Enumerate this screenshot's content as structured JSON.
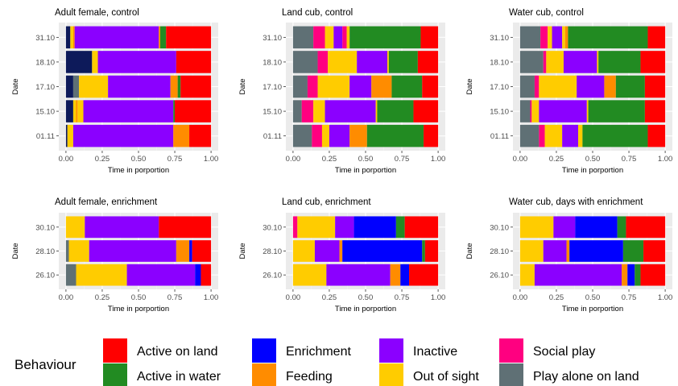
{
  "colors": {
    "Active on land": "#ff0000",
    "Enrichment": "#0000ff",
    "Inactive": "#8b00ff",
    "Social play": "#ff0080",
    "Active in water": "#228b22",
    "Feeding": "#ff8c00",
    "Out of sight": "#ffcc00",
    "Play alone on land": "#5f7075",
    "unlabeled_dark_navy": "#0d1a5a"
  },
  "legend": {
    "title": "Behaviour",
    "items": [
      "Active on land",
      "Active in water",
      "Enrichment",
      "Feeding",
      "Inactive",
      "Out of sight",
      "Social play",
      "Play alone on land"
    ]
  },
  "chart_data": [
    {
      "type": "bar",
      "orientation": "horizontal",
      "stacked": true,
      "title": "Adult female, control",
      "xlabel": "Time in porportion",
      "ylabel": "Date",
      "xlim": [
        0,
        1
      ],
      "xticks": [
        "0.00",
        "0.25",
        "0.50",
        "0.75",
        "1.00"
      ],
      "categories": [
        "31.10",
        "18.10",
        "17.10",
        "15.10",
        "01.11"
      ],
      "bars": [
        [
          [
            "unlabeled_dark_navy",
            0.03
          ],
          [
            "Out of sight",
            0.02
          ],
          [
            "Feeding",
            0.01
          ],
          [
            "Inactive",
            0.58
          ],
          [
            "Feeding",
            0.01
          ],
          [
            "Active in water",
            0.04
          ],
          [
            "Active on land",
            0.31
          ]
        ],
        [
          [
            "unlabeled_dark_navy",
            0.18
          ],
          [
            "Out of sight",
            0.04
          ],
          [
            "Inactive",
            0.54
          ],
          [
            "Active on land",
            0.24
          ]
        ],
        [
          [
            "unlabeled_dark_navy",
            0.05
          ],
          [
            "Play alone on land",
            0.04
          ],
          [
            "Out of sight",
            0.2
          ],
          [
            "Inactive",
            0.43
          ],
          [
            "Feeding",
            0.05
          ],
          [
            "Active in water",
            0.02
          ],
          [
            "Active on land",
            0.21
          ]
        ],
        [
          [
            "unlabeled_dark_navy",
            0.05
          ],
          [
            "Out of sight",
            0.02
          ],
          [
            "Feeding",
            0.01
          ],
          [
            "Out of sight",
            0.04
          ],
          [
            "Inactive",
            0.62
          ],
          [
            "Active in water",
            0.01
          ],
          [
            "Active on land",
            0.25
          ]
        ],
        [
          [
            "unlabeled_dark_navy",
            0.01
          ],
          [
            "Out of sight",
            0.04
          ],
          [
            "Inactive",
            0.69
          ],
          [
            "Feeding",
            0.11
          ],
          [
            "Active on land",
            0.15
          ]
        ]
      ]
    },
    {
      "type": "bar",
      "orientation": "horizontal",
      "stacked": true,
      "title": "Land cub, control",
      "xlabel": "Time in porportion",
      "ylabel": "Date",
      "xlim": [
        0,
        1
      ],
      "xticks": [
        "0.00",
        "0.25",
        "0.50",
        "0.75",
        "1.00"
      ],
      "categories": [
        "31.10",
        "18.10",
        "17.10",
        "15.10",
        "01.11"
      ],
      "bars": [
        [
          [
            "Play alone on land",
            0.14
          ],
          [
            "Social play",
            0.08
          ],
          [
            "Out of sight",
            0.06
          ],
          [
            "Inactive",
            0.06
          ],
          [
            "Social play",
            0.03
          ],
          [
            "Out of sight",
            0.02
          ],
          [
            "Active in water",
            0.49
          ],
          [
            "Active on land",
            0.12
          ]
        ],
        [
          [
            "Play alone on land",
            0.17
          ],
          [
            "Social play",
            0.07
          ],
          [
            "Out of sight",
            0.2
          ],
          [
            "Inactive",
            0.21
          ],
          [
            "Out of sight",
            0.01
          ],
          [
            "Active in water",
            0.2
          ],
          [
            "Active on land",
            0.14
          ]
        ],
        [
          [
            "Play alone on land",
            0.1
          ],
          [
            "Social play",
            0.07
          ],
          [
            "Out of sight",
            0.22
          ],
          [
            "Inactive",
            0.15
          ],
          [
            "Feeding",
            0.14
          ],
          [
            "Active in water",
            0.21
          ],
          [
            "Active on land",
            0.11
          ]
        ],
        [
          [
            "Play alone on land",
            0.06
          ],
          [
            "Social play",
            0.08
          ],
          [
            "Out of sight",
            0.08
          ],
          [
            "Inactive",
            0.35
          ],
          [
            "Out of sight",
            0.01
          ],
          [
            "Active in water",
            0.25
          ],
          [
            "Active on land",
            0.17
          ]
        ],
        [
          [
            "Play alone on land",
            0.13
          ],
          [
            "Social play",
            0.07
          ],
          [
            "Out of sight",
            0.05
          ],
          [
            "Inactive",
            0.14
          ],
          [
            "Feeding",
            0.12
          ],
          [
            "Active in water",
            0.39
          ],
          [
            "Active on land",
            0.1
          ]
        ]
      ]
    },
    {
      "type": "bar",
      "orientation": "horizontal",
      "stacked": true,
      "title": "Water cub, control",
      "xlabel": "Time in porportion",
      "ylabel": "Date",
      "xlim": [
        0,
        1
      ],
      "xticks": [
        "0.00",
        "0.25",
        "0.50",
        "0.75",
        "1.00"
      ],
      "categories": [
        "31.10",
        "18.10",
        "17.10",
        "15.10",
        "01.11"
      ],
      "bars": [
        [
          [
            "Play alone on land",
            0.14
          ],
          [
            "Social play",
            0.05
          ],
          [
            "Out of sight",
            0.03
          ],
          [
            "Inactive",
            0.07
          ],
          [
            "Out of sight",
            0.02
          ],
          [
            "Feeding",
            0.02
          ],
          [
            "Active in water",
            0.55
          ],
          [
            "Active on land",
            0.12
          ]
        ],
        [
          [
            "Play alone on land",
            0.16
          ],
          [
            "Social play",
            0.02
          ],
          [
            "Out of sight",
            0.12
          ],
          [
            "Inactive",
            0.23
          ],
          [
            "Out of sight",
            0.01
          ],
          [
            "Active in water",
            0.29
          ],
          [
            "Active on land",
            0.17
          ]
        ],
        [
          [
            "Play alone on land",
            0.1
          ],
          [
            "Social play",
            0.03
          ],
          [
            "Out of sight",
            0.26
          ],
          [
            "Inactive",
            0.19
          ],
          [
            "Feeding",
            0.08
          ],
          [
            "Active in water",
            0.2
          ],
          [
            "Active on land",
            0.14
          ]
        ],
        [
          [
            "Play alone on land",
            0.07
          ],
          [
            "Social play",
            0.01
          ],
          [
            "Out of sight",
            0.05
          ],
          [
            "Inactive",
            0.33
          ],
          [
            "Out of sight",
            0.01
          ],
          [
            "Active in water",
            0.39
          ],
          [
            "Active on land",
            0.14
          ]
        ],
        [
          [
            "Play alone on land",
            0.13
          ],
          [
            "Social play",
            0.04
          ],
          [
            "Out of sight",
            0.12
          ],
          [
            "Inactive",
            0.11
          ],
          [
            "Out of sight",
            0.03
          ],
          [
            "Active in water",
            0.45
          ],
          [
            "Active on land",
            0.12
          ]
        ]
      ]
    },
    {
      "type": "bar",
      "orientation": "horizontal",
      "stacked": true,
      "title": "Adult female, enrichment",
      "xlabel": "Time in porportion",
      "ylabel": "Date",
      "xlim": [
        0,
        1
      ],
      "xticks": [
        "0.00",
        "0.25",
        "0.50",
        "0.75",
        "1.00"
      ],
      "categories": [
        "30.10",
        "28.10",
        "26.10"
      ],
      "bars": [
        [
          [
            "Out of sight",
            0.13
          ],
          [
            "Inactive",
            0.51
          ],
          [
            "Active on land",
            0.36
          ]
        ],
        [
          [
            "Play alone on land",
            0.02
          ],
          [
            "Out of sight",
            0.14
          ],
          [
            "Inactive",
            0.6
          ],
          [
            "Feeding",
            0.09
          ],
          [
            "Enrichment",
            0.02
          ],
          [
            "Active on land",
            0.13
          ]
        ],
        [
          [
            "Play alone on land",
            0.07
          ],
          [
            "Out of sight",
            0.35
          ],
          [
            "Inactive",
            0.47
          ],
          [
            "Enrichment",
            0.04
          ],
          [
            "Active on land",
            0.07
          ]
        ]
      ]
    },
    {
      "type": "bar",
      "orientation": "horizontal",
      "stacked": true,
      "title": "Land cub, enrichment",
      "xlabel": "Time in porportion",
      "ylabel": "Date",
      "xlim": [
        0,
        1
      ],
      "xticks": [
        "0.00",
        "0.25",
        "0.50",
        "0.75",
        "1.00"
      ],
      "categories": [
        "30.10",
        "28.10",
        "26.10"
      ],
      "bars": [
        [
          [
            "Social play",
            0.03
          ],
          [
            "Out of sight",
            0.26
          ],
          [
            "Inactive",
            0.13
          ],
          [
            "Enrichment",
            0.29
          ],
          [
            "Active in water",
            0.06
          ],
          [
            "Active on land",
            0.23
          ]
        ],
        [
          [
            "Out of sight",
            0.15
          ],
          [
            "Inactive",
            0.17
          ],
          [
            "Feeding",
            0.02
          ],
          [
            "Enrichment",
            0.55
          ],
          [
            "Active in water",
            0.02
          ],
          [
            "Active on land",
            0.09
          ]
        ],
        [
          [
            "Out of sight",
            0.23
          ],
          [
            "Inactive",
            0.44
          ],
          [
            "Feeding",
            0.07
          ],
          [
            "Enrichment",
            0.06
          ],
          [
            "Active on land",
            0.2
          ]
        ]
      ]
    },
    {
      "type": "bar",
      "orientation": "horizontal",
      "stacked": true,
      "title": "Water cub, days with enrichment",
      "xlabel": "Time in porportion",
      "ylabel": "Date",
      "xlim": [
        0,
        1
      ],
      "xticks": [
        "0.00",
        "0.25",
        "0.50",
        "0.75",
        "1.00"
      ],
      "categories": [
        "30.10",
        "28.10",
        "26.10"
      ],
      "bars": [
        [
          [
            "Out of sight",
            0.23
          ],
          [
            "Inactive",
            0.15
          ],
          [
            "Enrichment",
            0.29
          ],
          [
            "Active in water",
            0.06
          ],
          [
            "Active on land",
            0.27
          ]
        ],
        [
          [
            "Out of sight",
            0.16
          ],
          [
            "Inactive",
            0.16
          ],
          [
            "Feeding",
            0.02
          ],
          [
            "Enrichment",
            0.37
          ],
          [
            "Active in water",
            0.14
          ],
          [
            "Active on land",
            0.15
          ]
        ],
        [
          [
            "Out of sight",
            0.1
          ],
          [
            "Inactive",
            0.6
          ],
          [
            "Feeding",
            0.04
          ],
          [
            "Enrichment",
            0.05
          ],
          [
            "Active in water",
            0.04
          ],
          [
            "Active on land",
            0.17
          ]
        ]
      ]
    }
  ]
}
